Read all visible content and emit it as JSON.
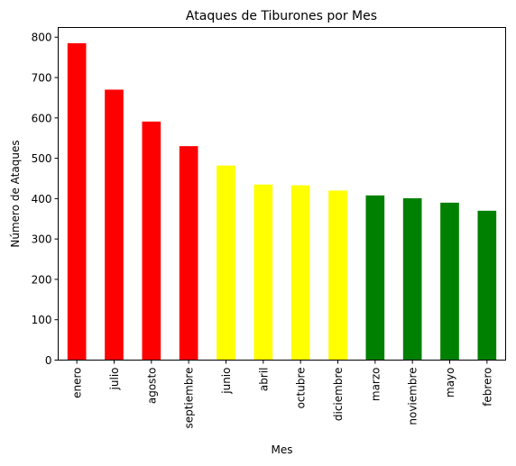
{
  "chart_data": {
    "type": "bar",
    "title": "Ataques de Tiburones por Mes",
    "xlabel": "Mes",
    "ylabel": "Número de Ataques",
    "categories": [
      "enero",
      "julio",
      "agosto",
      "septiembre",
      "junio",
      "abril",
      "octubre",
      "diciembre",
      "marzo",
      "noviembre",
      "mayo",
      "febrero"
    ],
    "values": [
      785,
      670,
      591,
      530,
      482,
      435,
      433,
      420,
      408,
      401,
      390,
      370
    ],
    "bar_colors": [
      "#ff0000",
      "#ff0000",
      "#ff0000",
      "#ff0000",
      "#ffff00",
      "#ffff00",
      "#ffff00",
      "#ffff00",
      "#008000",
      "#008000",
      "#008000",
      "#008000"
    ],
    "ylim": [
      0,
      824
    ],
    "yticks": [
      0,
      100,
      200,
      300,
      400,
      500,
      600,
      700,
      800
    ],
    "grid": false,
    "legend": "none"
  }
}
